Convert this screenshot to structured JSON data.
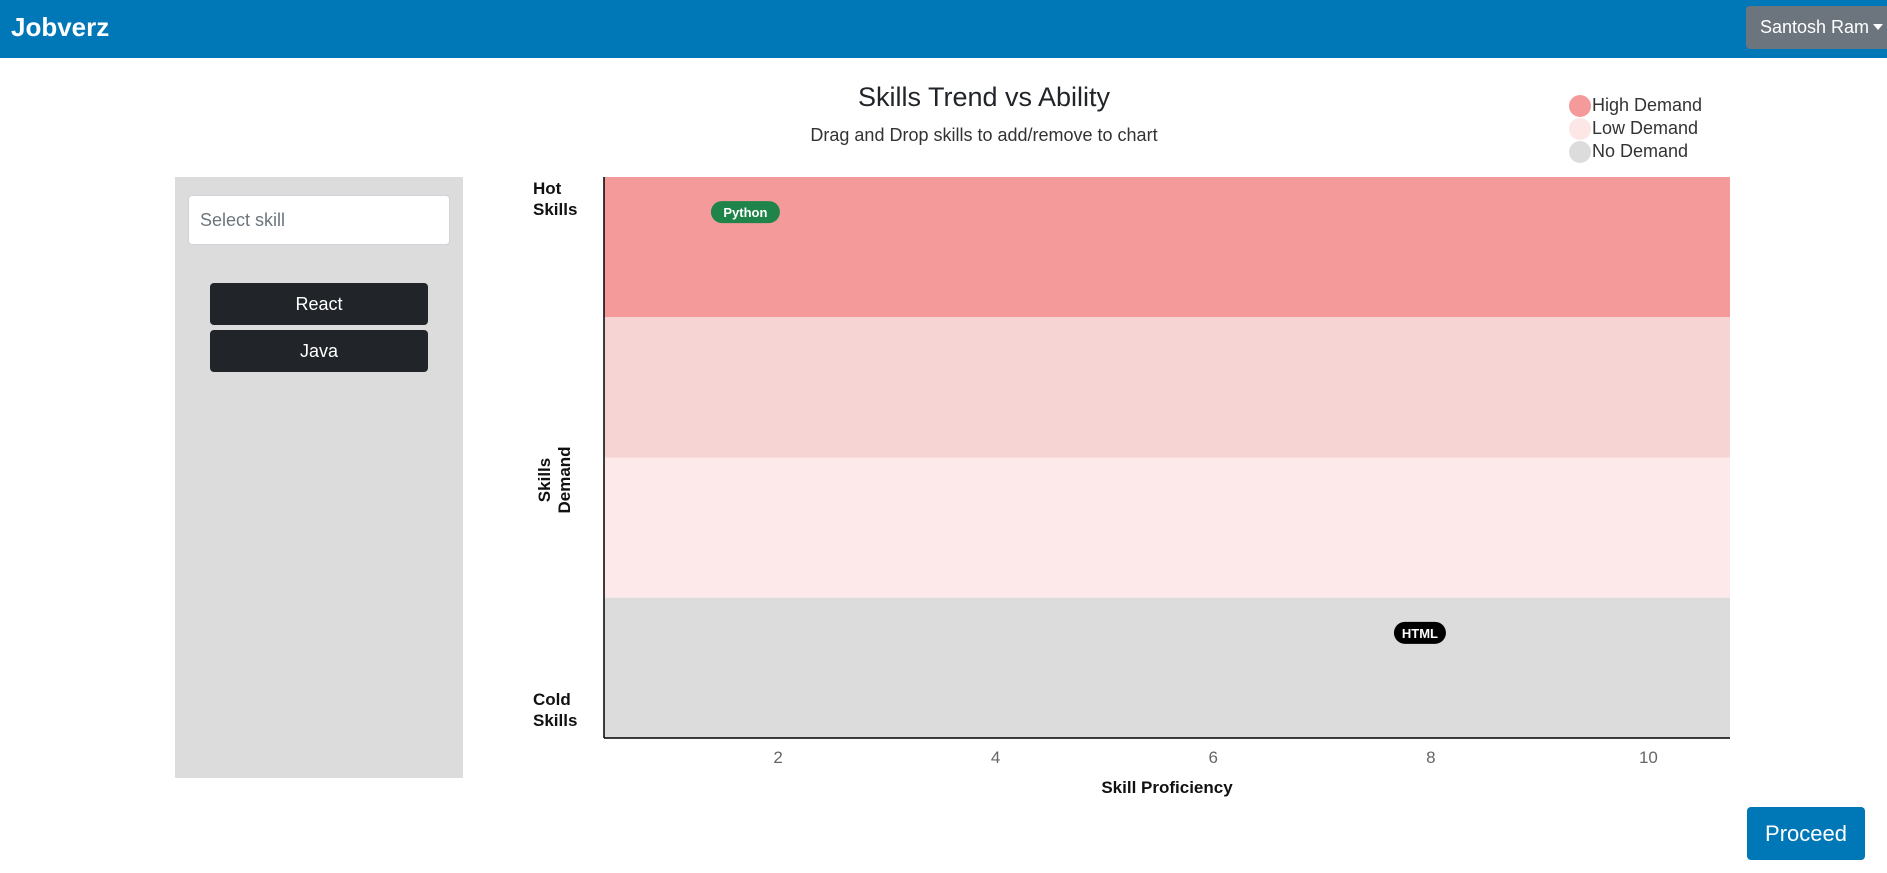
{
  "navbar": {
    "brand": "Jobverz",
    "user_name": "Santosh Ram"
  },
  "header": {
    "title": "Skills Trend vs Ability",
    "subtitle": "Drag and Drop skills to add/remove to chart"
  },
  "legend": [
    {
      "label": "High Demand",
      "color": "#f59a9b"
    },
    {
      "label": "Low Demand",
      "color": "#fde6e6"
    },
    {
      "label": "No Demand",
      "color": "#dcdcdc"
    }
  ],
  "sidebar": {
    "search_placeholder": "Select skill",
    "skills": [
      "React",
      "Java"
    ]
  },
  "chart_data": {
    "type": "scatter",
    "xlabel": "Skill Proficiency",
    "ylabel": "Skills Demand",
    "y_top_label": "Hot Skills",
    "y_bottom_label": "Cold Skills",
    "x_ticks": [
      2,
      4,
      6,
      8,
      10
    ],
    "xlim": [
      0.4,
      10.75
    ],
    "ylim": [
      0,
      4
    ],
    "bands": [
      {
        "from": 3,
        "to": 4,
        "color": "#f59a9b"
      },
      {
        "from": 2,
        "to": 3,
        "color": "#f6d4d4"
      },
      {
        "from": 1,
        "to": 2,
        "color": "#fde9e9"
      },
      {
        "from": 0,
        "to": 1,
        "color": "#dcdcdc"
      }
    ],
    "points": [
      {
        "label": "Python",
        "x": 1.7,
        "y": 3.75,
        "color": "#1e8449"
      },
      {
        "label": "HTML",
        "x": 7.9,
        "y": 0.75,
        "color": "#000000"
      }
    ]
  },
  "proceed_label": "Proceed"
}
